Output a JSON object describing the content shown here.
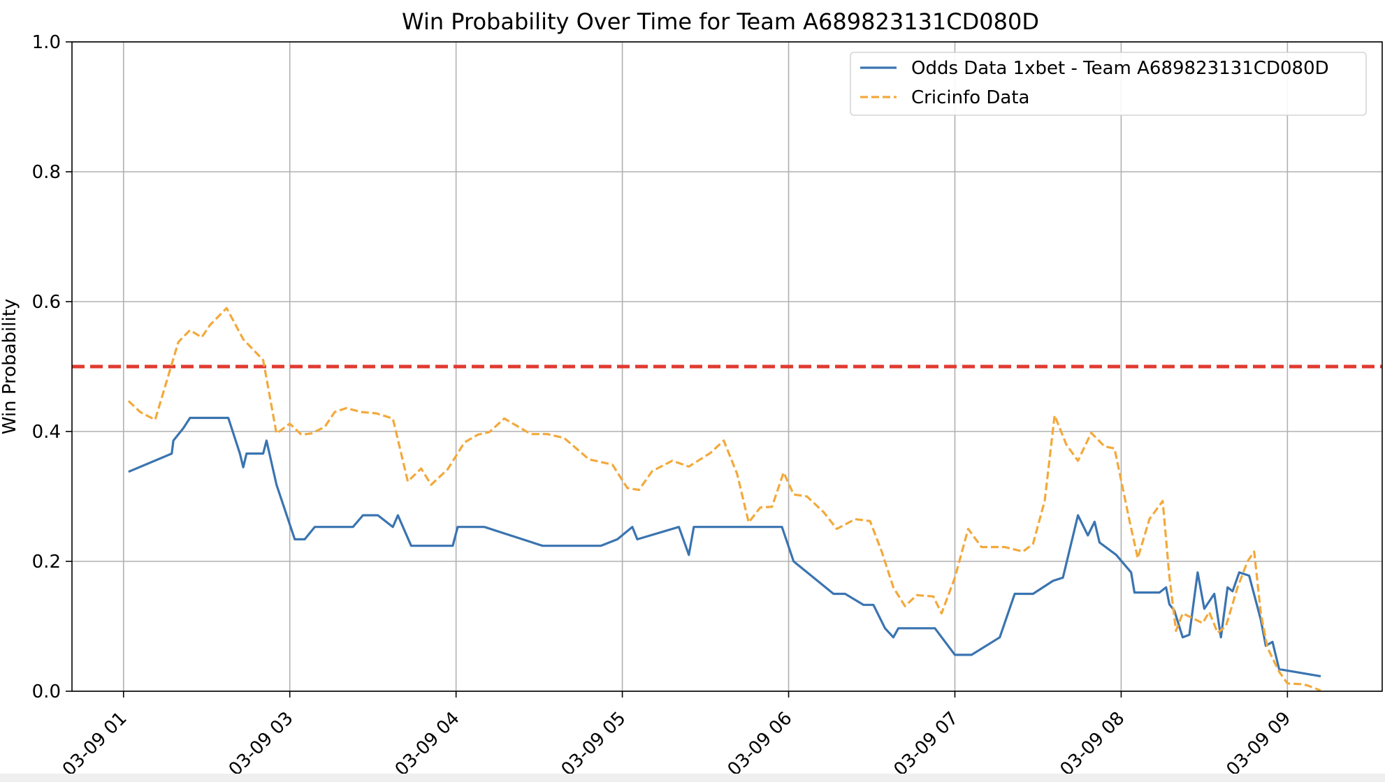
{
  "chart_data": {
    "type": "line",
    "title": "Win Probability Over Time for Team A689823131CD080D",
    "xlabel": "",
    "ylabel": "Win Probability",
    "ylim": [
      0,
      1
    ],
    "yticks": [
      "0.0",
      "0.2",
      "0.4",
      "0.6",
      "0.8",
      "1.0"
    ],
    "xticks": [
      {
        "label": "03-09 01",
        "t": 1.0
      },
      {
        "label": "03-09 03",
        "t": 2.0
      },
      {
        "label": "03-09 04",
        "t": 3.0
      },
      {
        "label": "03-09 05",
        "t": 4.0
      },
      {
        "label": "03-09 06",
        "t": 5.0
      },
      {
        "label": "03-09 07",
        "t": 6.0
      },
      {
        "label": "03-09 08",
        "t": 7.0
      },
      {
        "label": "03-09 09",
        "t": 8.0
      }
    ],
    "xlim": [
      0.69,
      8.57
    ],
    "grid": true,
    "legend_position": "top-right",
    "reference_line": {
      "y": 0.5,
      "color": "#e03a30",
      "style": "dashed"
    },
    "series": [
      {
        "name": "Odds Data 1xbet - Team A689823131CD080D",
        "color": "#3a74b0",
        "style": "solid",
        "points": [
          [
            1.03,
            0.338
          ],
          [
            1.29,
            0.366
          ],
          [
            1.3,
            0.386
          ],
          [
            1.36,
            0.405
          ],
          [
            1.4,
            0.421
          ],
          [
            1.63,
            0.421
          ],
          [
            1.7,
            0.366
          ],
          [
            1.72,
            0.345
          ],
          [
            1.74,
            0.366
          ],
          [
            1.84,
            0.366
          ],
          [
            1.86,
            0.386
          ],
          [
            1.92,
            0.318
          ],
          [
            2.03,
            0.234
          ],
          [
            2.09,
            0.234
          ],
          [
            2.15,
            0.253
          ],
          [
            2.38,
            0.253
          ],
          [
            2.44,
            0.271
          ],
          [
            2.53,
            0.271
          ],
          [
            2.62,
            0.253
          ],
          [
            2.65,
            0.271
          ],
          [
            2.73,
            0.224
          ],
          [
            2.98,
            0.224
          ],
          [
            3.01,
            0.253
          ],
          [
            3.17,
            0.253
          ],
          [
            3.52,
            0.224
          ],
          [
            3.87,
            0.224
          ],
          [
            3.97,
            0.234
          ],
          [
            4.06,
            0.253
          ],
          [
            4.09,
            0.234
          ],
          [
            4.34,
            0.253
          ],
          [
            4.4,
            0.21
          ],
          [
            4.43,
            0.253
          ],
          [
            4.96,
            0.253
          ],
          [
            5.03,
            0.2
          ],
          [
            5.27,
            0.15
          ],
          [
            5.34,
            0.15
          ],
          [
            5.45,
            0.133
          ],
          [
            5.51,
            0.133
          ],
          [
            5.58,
            0.097
          ],
          [
            5.63,
            0.083
          ],
          [
            5.66,
            0.097
          ],
          [
            5.88,
            0.097
          ],
          [
            6.0,
            0.056
          ],
          [
            6.1,
            0.056
          ],
          [
            6.27,
            0.083
          ],
          [
            6.36,
            0.15
          ],
          [
            6.47,
            0.15
          ],
          [
            6.59,
            0.17
          ],
          [
            6.65,
            0.175
          ],
          [
            6.74,
            0.271
          ],
          [
            6.8,
            0.24
          ],
          [
            6.84,
            0.261
          ],
          [
            6.87,
            0.229
          ],
          [
            6.97,
            0.21
          ],
          [
            7.06,
            0.183
          ],
          [
            7.08,
            0.152
          ],
          [
            7.23,
            0.152
          ],
          [
            7.27,
            0.16
          ],
          [
            7.29,
            0.134
          ],
          [
            7.32,
            0.124
          ],
          [
            7.37,
            0.083
          ],
          [
            7.41,
            0.087
          ],
          [
            7.46,
            0.183
          ],
          [
            7.5,
            0.127
          ],
          [
            7.56,
            0.15
          ],
          [
            7.6,
            0.083
          ],
          [
            7.64,
            0.16
          ],
          [
            7.67,
            0.154
          ],
          [
            7.71,
            0.183
          ],
          [
            7.77,
            0.178
          ],
          [
            7.84,
            0.11
          ],
          [
            7.87,
            0.07
          ],
          [
            7.91,
            0.076
          ],
          [
            7.95,
            0.034
          ],
          [
            8.2,
            0.023
          ]
        ]
      },
      {
        "name": "Cricinfo Data",
        "color": "#f2a93b",
        "style": "dashed",
        "points": [
          [
            1.03,
            0.447
          ],
          [
            1.1,
            0.43
          ],
          [
            1.19,
            0.418
          ],
          [
            1.33,
            0.538
          ],
          [
            1.4,
            0.556
          ],
          [
            1.47,
            0.545
          ],
          [
            1.52,
            0.564
          ],
          [
            1.62,
            0.59
          ],
          [
            1.72,
            0.542
          ],
          [
            1.84,
            0.51
          ],
          [
            1.92,
            0.397
          ],
          [
            2.0,
            0.412
          ],
          [
            2.07,
            0.395
          ],
          [
            2.13,
            0.397
          ],
          [
            2.21,
            0.407
          ],
          [
            2.27,
            0.43
          ],
          [
            2.34,
            0.436
          ],
          [
            2.43,
            0.43
          ],
          [
            2.52,
            0.428
          ],
          [
            2.62,
            0.42
          ],
          [
            2.71,
            0.323
          ],
          [
            2.79,
            0.343
          ],
          [
            2.85,
            0.318
          ],
          [
            2.95,
            0.342
          ],
          [
            3.05,
            0.383
          ],
          [
            3.13,
            0.395
          ],
          [
            3.2,
            0.399
          ],
          [
            3.29,
            0.42
          ],
          [
            3.45,
            0.396
          ],
          [
            3.55,
            0.396
          ],
          [
            3.65,
            0.39
          ],
          [
            3.8,
            0.357
          ],
          [
            3.94,
            0.349
          ],
          [
            4.03,
            0.313
          ],
          [
            4.1,
            0.31
          ],
          [
            4.18,
            0.339
          ],
          [
            4.3,
            0.355
          ],
          [
            4.4,
            0.346
          ],
          [
            4.53,
            0.367
          ],
          [
            4.61,
            0.386
          ],
          [
            4.69,
            0.335
          ],
          [
            4.76,
            0.26
          ],
          [
            4.83,
            0.283
          ],
          [
            4.9,
            0.284
          ],
          [
            4.97,
            0.337
          ],
          [
            5.03,
            0.303
          ],
          [
            5.11,
            0.3
          ],
          [
            5.21,
            0.276
          ],
          [
            5.29,
            0.25
          ],
          [
            5.4,
            0.265
          ],
          [
            5.49,
            0.262
          ],
          [
            5.56,
            0.215
          ],
          [
            5.63,
            0.16
          ],
          [
            5.7,
            0.131
          ],
          [
            5.77,
            0.148
          ],
          [
            5.87,
            0.146
          ],
          [
            5.92,
            0.12
          ],
          [
            6.0,
            0.175
          ],
          [
            6.08,
            0.25
          ],
          [
            6.16,
            0.222
          ],
          [
            6.3,
            0.222
          ],
          [
            6.41,
            0.215
          ],
          [
            6.47,
            0.227
          ],
          [
            6.54,
            0.293
          ],
          [
            6.6,
            0.425
          ],
          [
            6.67,
            0.38
          ],
          [
            6.74,
            0.355
          ],
          [
            6.82,
            0.398
          ],
          [
            6.9,
            0.377
          ],
          [
            6.96,
            0.374
          ],
          [
            7.05,
            0.263
          ],
          [
            7.1,
            0.205
          ],
          [
            7.17,
            0.265
          ],
          [
            7.25,
            0.293
          ],
          [
            7.29,
            0.177
          ],
          [
            7.33,
            0.093
          ],
          [
            7.37,
            0.12
          ],
          [
            7.49,
            0.105
          ],
          [
            7.53,
            0.122
          ],
          [
            7.58,
            0.09
          ],
          [
            7.63,
            0.1
          ],
          [
            7.7,
            0.16
          ],
          [
            7.76,
            0.2
          ],
          [
            7.8,
            0.215
          ],
          [
            7.84,
            0.12
          ],
          [
            7.88,
            0.067
          ],
          [
            7.95,
            0.03
          ],
          [
            8.0,
            0.012
          ],
          [
            8.08,
            0.011
          ],
          [
            8.12,
            0.009
          ],
          [
            8.2,
            0.001
          ]
        ]
      }
    ]
  }
}
